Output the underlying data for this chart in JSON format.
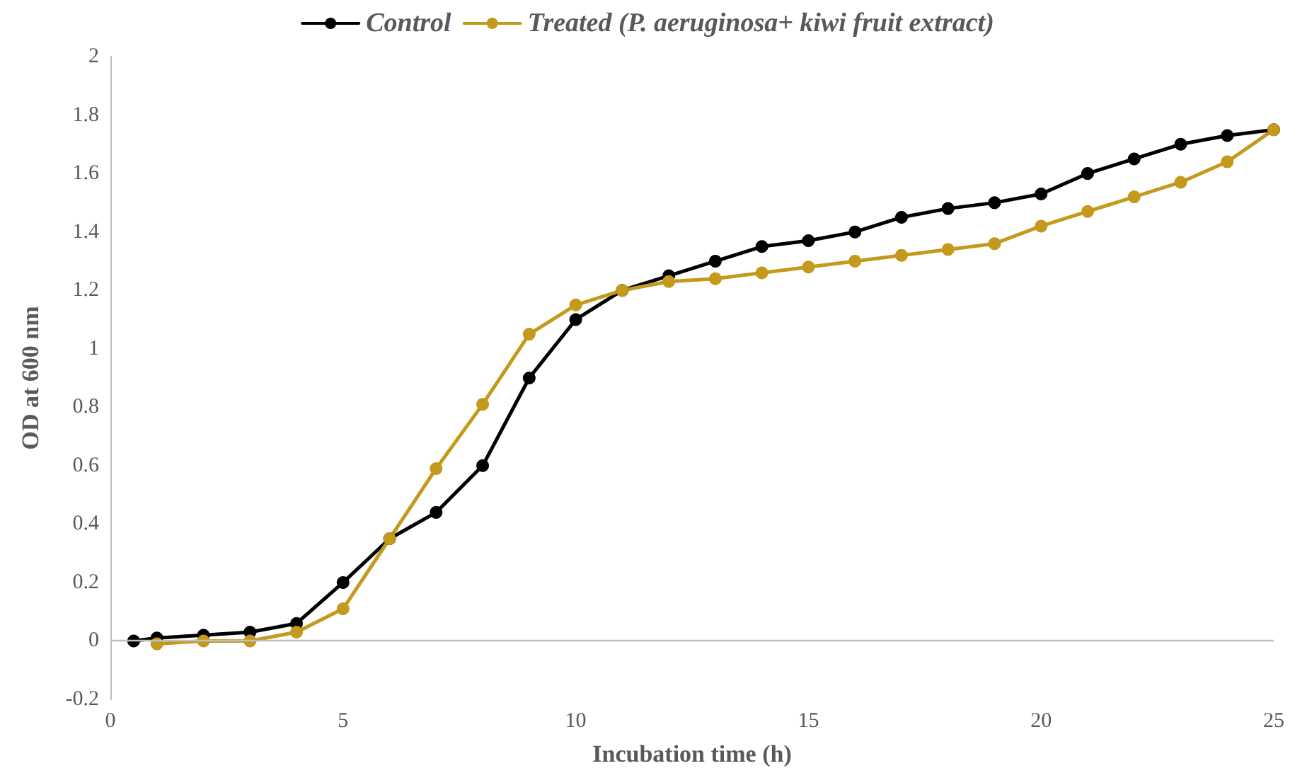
{
  "chart_data": {
    "type": "line",
    "xlabel": "Incubation time (h)",
    "ylabel": "OD at 600 nm",
    "xlim": [
      0,
      25
    ],
    "xticks": [
      0,
      5,
      10,
      15,
      20,
      25
    ],
    "ylim": [
      -0.2,
      2
    ],
    "yticks": [
      -0.2,
      0,
      0.2,
      0.4,
      0.6,
      0.8,
      1,
      1.2,
      1.4,
      1.6,
      1.8,
      2
    ],
    "grid": false,
    "ref_lines": [
      {
        "axis": "y",
        "value": 0,
        "color": "#bfbfbf"
      }
    ],
    "legend": "top",
    "marker": "circle",
    "line_style": "solid",
    "series": [
      {
        "name": "Control",
        "color": "#000000",
        "x": [
          0.5,
          1,
          2,
          3,
          4,
          5,
          6,
          7,
          8,
          9,
          10,
          11,
          12,
          13,
          14,
          15,
          16,
          17,
          18,
          19,
          20,
          21,
          22,
          23,
          24,
          25
        ],
        "values": [
          0,
          0.01,
          0.02,
          0.03,
          0.06,
          0.2,
          0.35,
          0.44,
          0.6,
          0.9,
          1.1,
          1.2,
          1.25,
          1.3,
          1.35,
          1.37,
          1.4,
          1.45,
          1.48,
          1.5,
          1.53,
          1.6,
          1.65,
          1.7,
          1.73,
          1.75
        ]
      },
      {
        "name": "Treated (P. aeruginosa+ kiwi fruit extract)",
        "color": "#c49a1c",
        "x": [
          1,
          2,
          3,
          4,
          5,
          6,
          7,
          8,
          9,
          10,
          11,
          12,
          13,
          14,
          15,
          16,
          17,
          18,
          19,
          20,
          21,
          22,
          23,
          24,
          25
        ],
        "values": [
          -0.01,
          0,
          0,
          0.03,
          0.11,
          0.35,
          0.59,
          0.81,
          1.05,
          1.15,
          1.2,
          1.23,
          1.24,
          1.26,
          1.28,
          1.3,
          1.32,
          1.34,
          1.36,
          1.42,
          1.47,
          1.52,
          1.57,
          1.64,
          1.75
        ]
      }
    ]
  }
}
